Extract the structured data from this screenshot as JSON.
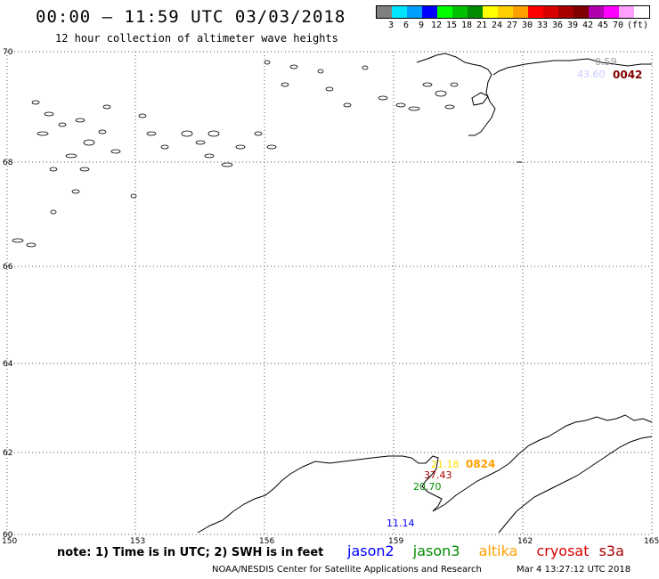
{
  "header": {
    "title": "00:00 – 11:59 UTC 03/03/2018",
    "subtitle": "12 hour collection of altimeter wave heights"
  },
  "legend": {
    "colors": [
      "#7f7f7f",
      "#00e5ff",
      "#00a0ff",
      "#0000ff",
      "#00ff00",
      "#00c000",
      "#008c00",
      "#ffff00",
      "#ffd000",
      "#ff9f00",
      "#ff0000",
      "#d80000",
      "#a80000",
      "#7f0000",
      "#b000b0",
      "#ff00ff",
      "#ffa0ff",
      "#ffffff"
    ],
    "labels": [
      "3",
      "6",
      "9",
      "12",
      "15",
      "18",
      "21",
      "24",
      "27",
      "30",
      "33",
      "36",
      "39",
      "42",
      "45",
      "70",
      "(ft)"
    ]
  },
  "map": {
    "lat_labels": [
      "70",
      "68",
      "66",
      "64",
      "62",
      "60"
    ],
    "lon_labels": [
      "150",
      "153",
      "156",
      "159",
      "162",
      "165"
    ],
    "values": [
      {
        "text": "0.59",
        "color": "#999999"
      },
      {
        "text": "43.60",
        "color": "#c8c8ff"
      },
      {
        "text": "0042",
        "color": "#7f0000"
      },
      {
        "text": "0824",
        "color": "#ff9f00"
      },
      {
        "text": "21.18",
        "color": "#ffe000"
      },
      {
        "text": "37.43",
        "color": "#a80000"
      },
      {
        "text": "20.70",
        "color": "#008c00"
      },
      {
        "text": "11.14",
        "color": "#0000ff"
      }
    ]
  },
  "footer": {
    "note": "note: 1) Time is in UTC; 2) SWH is in feet",
    "satellites": [
      {
        "name": "jason2",
        "color": "#0000ff"
      },
      {
        "name": "jason3",
        "color": "#008c00"
      },
      {
        "name": "altika",
        "color": "#ff9f00"
      },
      {
        "name": "cryosat",
        "color": "#d80000"
      },
      {
        "name": "s3a",
        "color": "#a80000"
      }
    ],
    "credit": "NOAA/NESDIS Center for Satellite Applications and Research",
    "timestamp": "Mar  4 13:27:12 UTC 2018"
  }
}
